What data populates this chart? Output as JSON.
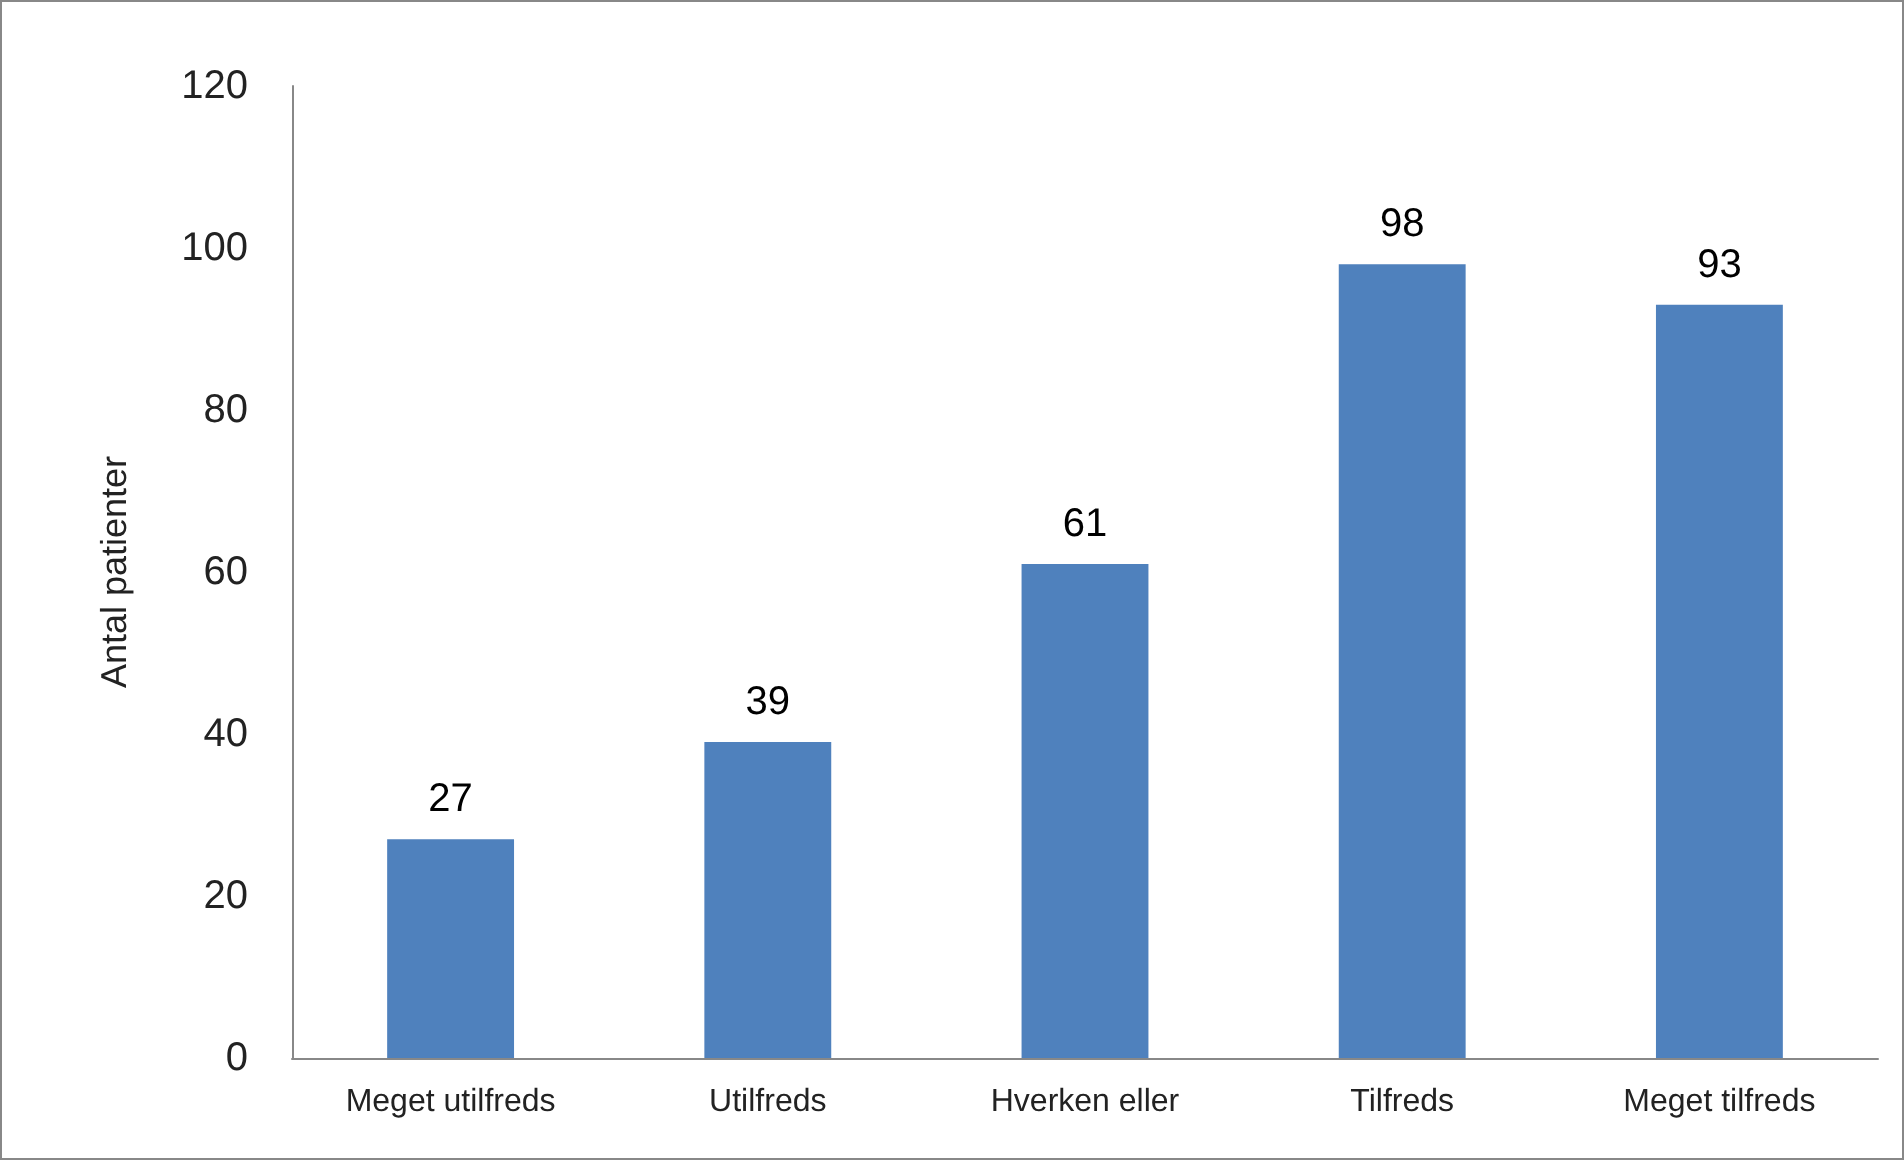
{
  "chart_data": {
    "type": "bar",
    "ylabel": "Antal patienter",
    "categories": [
      "Meget utilfreds",
      "Utilfreds",
      "Hverken eller",
      "Tilfreds",
      "Meget tilfreds"
    ],
    "values": [
      27,
      39,
      61,
      98,
      93
    ],
    "color": "#4f81bd",
    "ylim": [
      0,
      120
    ],
    "yticks": [
      0,
      20,
      40,
      60,
      80,
      100,
      120
    ],
    "grid": false,
    "data_labels": true
  }
}
